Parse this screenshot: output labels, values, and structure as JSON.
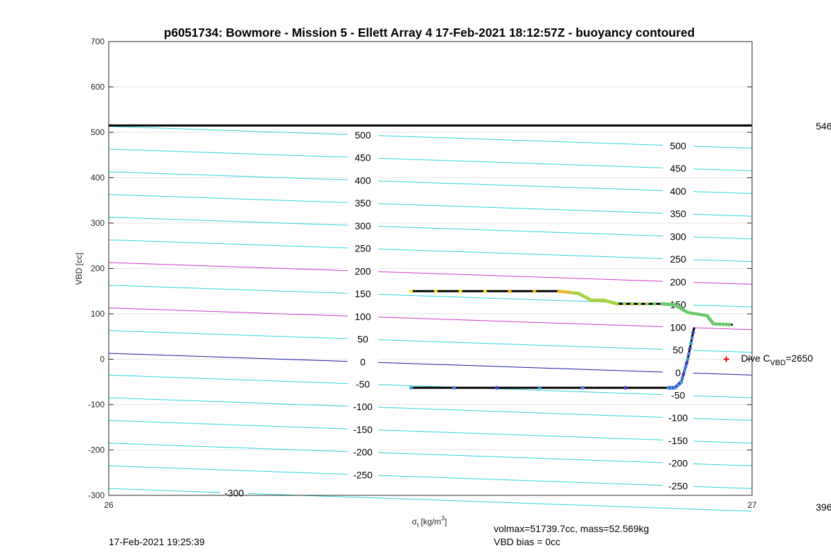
{
  "chart_data": {
    "type": "line",
    "title": "p6051734: Bowmore - Mission 5 - Ellett Array 4 17-Feb-2021 18:12:57Z - buoyancy contoured",
    "xlabel": "σt [kg/m3]",
    "xlabel_symbol": "σ",
    "xlabel_sub": "t",
    "xlabel_unit": "[kg/m",
    "xlabel_sup": "3",
    "xlabel_close": "]",
    "ylabel": "VBD [cc]",
    "xlim": [
      26,
      27
    ],
    "ylim": [
      -300,
      700
    ],
    "x_ticks": [
      "26",
      "27"
    ],
    "y_ticks": [
      "-300",
      "-200",
      "-100",
      "0",
      "100",
      "200",
      "300",
      "400",
      "500",
      "600",
      "700"
    ],
    "grid": true,
    "max_vbd_line": 515,
    "right_labels": {
      "top": "546",
      "bottom": "396"
    },
    "contours": {
      "levels": [
        -300,
        -250,
        -200,
        -150,
        -100,
        -50,
        0,
        50,
        100,
        150,
        200,
        250,
        300,
        350,
        400,
        450,
        500
      ],
      "y_at_x26": [
        -285,
        -235,
        -185,
        -135,
        -85,
        -35,
        13,
        63,
        113,
        163,
        213,
        263,
        313,
        363,
        413,
        463,
        513
      ],
      "y_at_x27": [
        -335,
        -285,
        -235,
        -185,
        -135,
        -85,
        -35,
        15,
        65,
        115,
        165,
        215,
        265,
        315,
        365,
        415,
        465
      ],
      "label_columns": {
        "x26_5": [
          "500",
          "450",
          "400",
          "350",
          "300",
          "250",
          "200",
          "150",
          "100",
          "50",
          "0",
          "-50",
          "-100",
          "-150",
          "-200",
          "-250"
        ],
        "x26_99": [
          "500",
          "450",
          "400",
          "350",
          "300",
          "250",
          "200",
          "150",
          "100",
          "50",
          "0",
          "-50",
          "-100",
          "-150",
          "-200",
          "-250"
        ]
      },
      "extra_label": "-300",
      "colors": {
        "default": "#2fd3d8",
        "highlight": "#c83cc8",
        "zero": "#1a1aa0"
      }
    },
    "series": [
      {
        "points": [
          [
            26.47,
            150
          ],
          [
            26.7,
            150
          ],
          [
            26.73,
            145
          ],
          [
            26.75,
            130
          ],
          [
            26.77,
            130
          ],
          [
            26.79,
            122
          ],
          [
            26.86,
            122
          ],
          [
            26.88,
            120
          ],
          [
            26.9,
            103
          ],
          [
            26.93,
            96
          ],
          [
            26.94,
            78
          ],
          [
            26.97,
            76
          ]
        ],
        "color": "#000000"
      },
      {
        "points": [
          [
            26.47,
            -63
          ],
          [
            26.87,
            -63
          ],
          [
            26.88,
            -63
          ],
          [
            26.89,
            -50
          ],
          [
            26.9,
            0
          ],
          [
            26.91,
            70
          ]
        ],
        "color": "#000000"
      }
    ],
    "marker": {
      "x": 26.96,
      "y": 0,
      "color": "#ff0000"
    },
    "dive_annotation": {
      "text": "Dive C",
      "sub": "VBD",
      "value": "=2650"
    },
    "footer": {
      "timestamp": "17-Feb-2021 19:25:39",
      "volmax": "volmax=51739.7cc, mass=52.569kg",
      "bias": "VBD bias = 0cc"
    }
  }
}
